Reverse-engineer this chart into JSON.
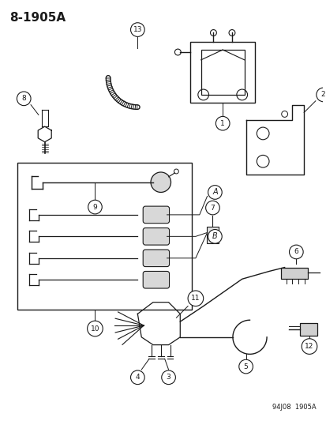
{
  "title": "8-1905A",
  "footer": "94J08  1905A",
  "bg_color": "#ffffff",
  "line_color": "#1a1a1a",
  "figsize": [
    4.14,
    5.33
  ],
  "dpi": 100
}
